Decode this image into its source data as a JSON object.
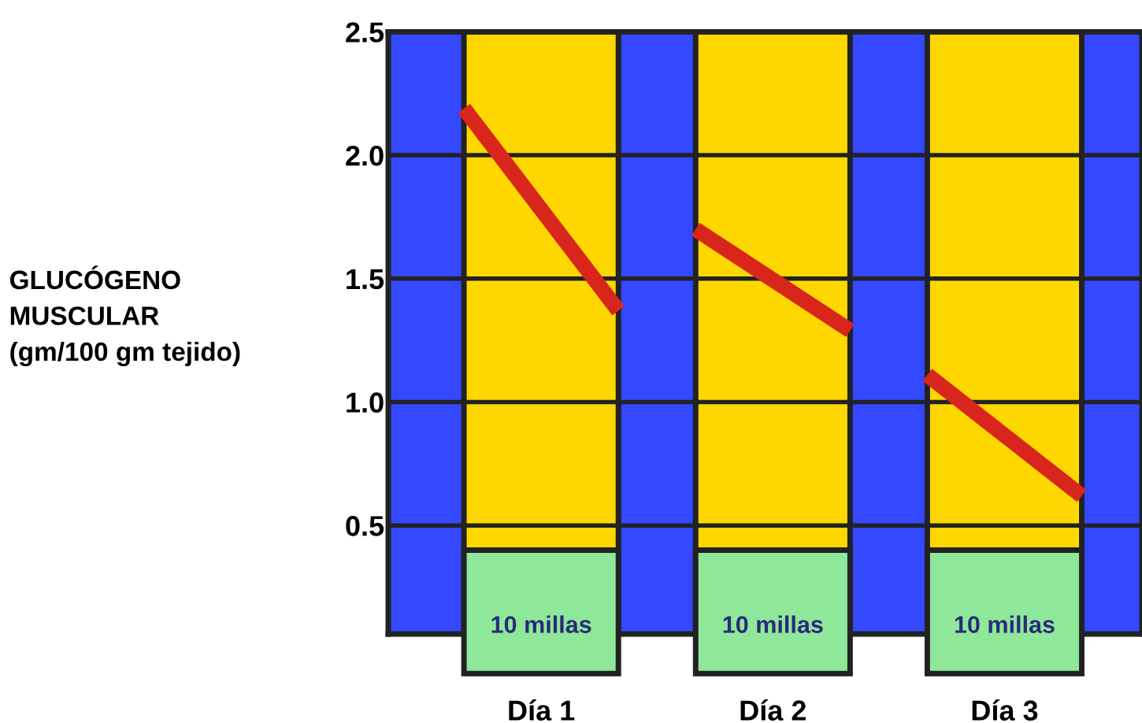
{
  "chart_data": {
    "type": "line",
    "ylabel": "GLUCÓGENO\nMUSCULAR\n(gm/100 gm tejido)",
    "categories": [
      null,
      "Día 1",
      null,
      null,
      "Día 2",
      null,
      null,
      "Día 3",
      null
    ],
    "ylim": [
      0.06,
      2.5
    ],
    "yticks": [
      0.5,
      {
        "value": 1,
        "label": "1.0"
      },
      1.5,
      {
        "value": 2,
        "label": "2.0"
      },
      2.5
    ],
    "grid": "y",
    "annotations": [
      "10 millas",
      "10 millas",
      "10 millas"
    ],
    "series": [
      {
        "color": "#d9261c",
        "values": [
          2.19,
          1.78,
          1.37,
          null,
          null,
          null,
          null,
          null,
          null
        ]
      },
      {
        "color": "#d9261c",
        "values": [
          null,
          null,
          null,
          1.7,
          1.495,
          1.29,
          null,
          null,
          null
        ]
      },
      {
        "color": "#d9261c",
        "values": [
          null,
          null,
          null,
          null,
          null,
          null,
          1.11,
          0.865,
          0.62
        ]
      }
    ]
  }
}
